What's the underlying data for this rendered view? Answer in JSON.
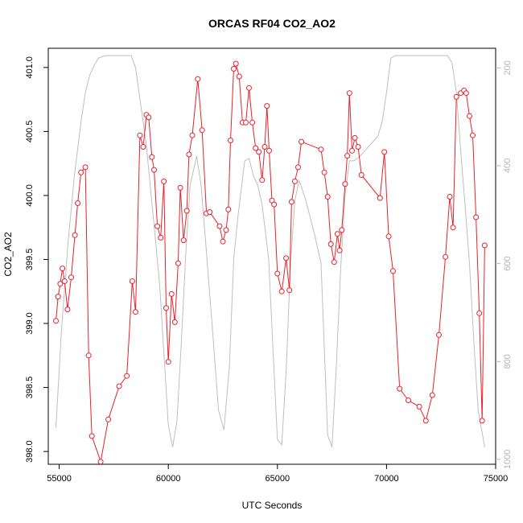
{
  "chart_data": {
    "type": "line",
    "title": "ORCAS RF04 CO2_AO2",
    "xlabel": "UTC Seconds",
    "ylabel": "CO2_AO2",
    "xlim": [
      54500,
      75000
    ],
    "ylim": [
      397.9,
      401.15
    ],
    "y2lim": [
      1010,
      160
    ],
    "x_ticks": [
      55000,
      60000,
      65000,
      70000,
      75000
    ],
    "y_ticks": [
      398.0,
      398.5,
      399.0,
      399.5,
      400.0,
      400.5,
      401.0
    ],
    "y2_ticks": [
      200,
      400,
      600,
      800,
      1000
    ],
    "series": [
      {
        "role": "co2",
        "color": "#e8202a",
        "marker": "circle",
        "x": [
          54850,
          54950,
          55050,
          55150,
          55250,
          55380,
          55550,
          55720,
          55850,
          56000,
          56200,
          56350,
          56500,
          56900,
          57250,
          57750,
          58100,
          58350,
          58500,
          58700,
          58850,
          59000,
          59100,
          59250,
          59350,
          59500,
          59650,
          59800,
          59900,
          60000,
          60150,
          60300,
          60450,
          60550,
          60700,
          60850,
          60950,
          61100,
          61350,
          61550,
          61750,
          61900,
          62350,
          62500,
          62650,
          62750,
          62850,
          63000,
          63100,
          63250,
          63400,
          63550,
          63700,
          63850,
          64000,
          64150,
          64300,
          64420,
          64520,
          64620,
          64750,
          64850,
          65000,
          65200,
          65400,
          65550,
          65650,
          65800,
          65950,
          66100,
          67000,
          67150,
          67300,
          67450,
          67600,
          67750,
          67850,
          67950,
          68100,
          68200,
          68300,
          68420,
          68550,
          68700,
          68850,
          69700,
          69900,
          70100,
          70300,
          70600,
          71000,
          71500,
          71800,
          72100,
          72400,
          72700,
          72900,
          73050,
          73200,
          73400,
          73550,
          73650,
          73800,
          73950,
          74100,
          74250,
          74380,
          74500
        ],
        "y": [
          399.02,
          399.21,
          399.31,
          399.43,
          399.33,
          399.11,
          399.36,
          399.69,
          399.94,
          400.18,
          400.22,
          398.75,
          398.12,
          397.92,
          398.25,
          398.51,
          398.59,
          399.33,
          399.09,
          400.47,
          400.38,
          400.63,
          400.61,
          400.3,
          400.2,
          399.76,
          399.67,
          400.11,
          399.12,
          398.7,
          399.23,
          399.01,
          399.47,
          400.06,
          399.65,
          399.88,
          400.32,
          400.47,
          400.91,
          400.51,
          399.86,
          399.87,
          399.76,
          399.64,
          399.73,
          399.89,
          400.43,
          400.99,
          401.03,
          400.93,
          400.57,
          400.57,
          400.84,
          400.57,
          400.37,
          400.34,
          400.12,
          400.38,
          400.7,
          400.35,
          399.96,
          399.93,
          399.39,
          399.25,
          399.51,
          399.26,
          399.95,
          400.11,
          400.22,
          400.42,
          400.36,
          400.18,
          399.99,
          399.62,
          399.48,
          399.7,
          399.57,
          399.73,
          400.09,
          400.31,
          400.8,
          400.35,
          400.45,
          400.38,
          400.16,
          399.98,
          400.34,
          399.68,
          399.41,
          398.49,
          398.4,
          398.35,
          398.24,
          398.44,
          398.91,
          399.52,
          399.99,
          399.75,
          400.77,
          400.8,
          400.82,
          400.8,
          400.62,
          400.47,
          399.83,
          399.08,
          398.24,
          399.61
        ]
      },
      {
        "role": "altitude",
        "color": "#bebebe",
        "marker": "none",
        "x": [
          54850,
          55100,
          55400,
          55700,
          56000,
          56200,
          56400,
          56600,
          56800,
          57100,
          57500,
          58000,
          58300,
          58500,
          58750,
          59000,
          59300,
          59600,
          59850,
          60000,
          60200,
          60400,
          60600,
          60800,
          61000,
          61300,
          61500,
          61700,
          62000,
          62300,
          62550,
          62800,
          63000,
          63200,
          63500,
          63700,
          63900,
          64100,
          64300,
          64600,
          64800,
          65000,
          65200,
          65400,
          65600,
          65800,
          66000,
          66300,
          66700,
          67000,
          67300,
          67500,
          67700,
          67900,
          68100,
          68300,
          68500,
          68800,
          69200,
          69600,
          69800,
          70000,
          70200,
          70400,
          70600,
          71000,
          71500,
          72000,
          72500,
          72800,
          73000,
          73200,
          73400,
          73600,
          73800,
          74000,
          74200,
          74500
        ],
        "y": [
          935,
          740,
          560,
          420,
          310,
          250,
          215,
          195,
          180,
          175,
          175,
          175,
          175,
          200,
          280,
          360,
          500,
          640,
          820,
          930,
          975,
          920,
          760,
          580,
          440,
          380,
          440,
          550,
          720,
          900,
          940,
          810,
          590,
          500,
          390,
          385,
          420,
          440,
          480,
          590,
          780,
          960,
          970,
          820,
          600,
          470,
          430,
          470,
          540,
          600,
          950,
          975,
          810,
          610,
          460,
          390,
          390,
          380,
          360,
          340,
          310,
          250,
          180,
          175,
          175,
          175,
          175,
          175,
          175,
          175,
          190,
          250,
          370,
          480,
          600,
          760,
          900,
          975
        ]
      }
    ]
  }
}
